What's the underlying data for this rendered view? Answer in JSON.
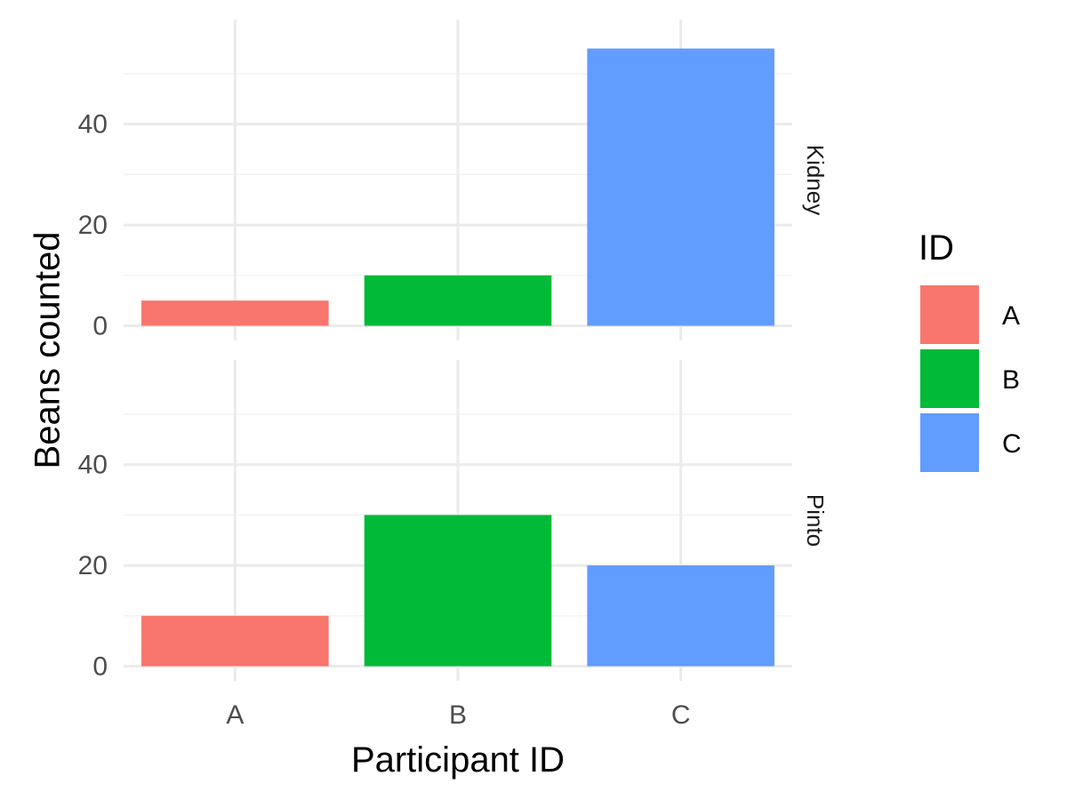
{
  "chart_data": {
    "type": "bar",
    "facet_by": "bean type",
    "categories": [
      "A",
      "B",
      "C"
    ],
    "facets": [
      {
        "label": "Kidney",
        "values": [
          5,
          10,
          55
        ]
      },
      {
        "label": "Pinto",
        "values": [
          10,
          30,
          20
        ]
      }
    ],
    "xlabel": "Participant ID",
    "ylabel": "Beans counted",
    "ylim": [
      0,
      57.75
    ],
    "yticks": [
      0,
      20,
      40
    ],
    "grid": true,
    "legend": {
      "title": "ID",
      "position": "right",
      "entries": [
        {
          "label": "A",
          "color": "#F8766D"
        },
        {
          "label": "B",
          "color": "#00BA38"
        },
        {
          "label": "C",
          "color": "#619CFF"
        }
      ]
    }
  },
  "colors": {
    "grid_major": "#ebebeb",
    "grid_minor": "#f3f3f3",
    "A": "#F8766D",
    "B": "#00BA38",
    "C": "#619CFF"
  }
}
